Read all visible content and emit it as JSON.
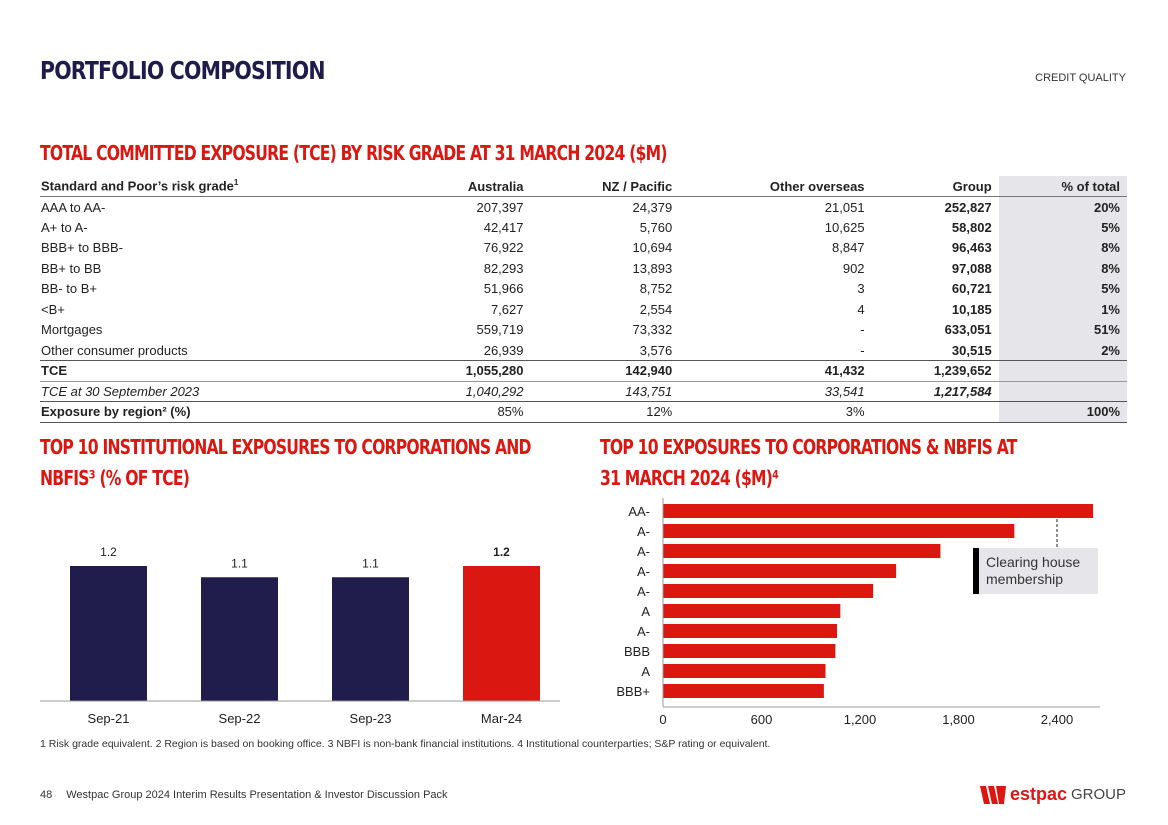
{
  "header": {
    "title": "PORTFOLIO COMPOSITION",
    "section": "CREDIT QUALITY"
  },
  "table_title": "TOTAL COMMITTED EXPOSURE (TCE) BY RISK GRADE AT 31 MARCH 2024 ($M)",
  "table": {
    "headers": [
      "Standard and Poor’s risk grade",
      "Australia",
      "NZ / Pacific",
      "Other overseas",
      "Group",
      "% of total"
    ],
    "header_sup": "1",
    "rows": [
      [
        "AAA to AA-",
        "207,397",
        "24,379",
        "21,051",
        "252,827",
        "20%"
      ],
      [
        "A+ to A-",
        "42,417",
        "5,760",
        "10,625",
        "58,802",
        "5%"
      ],
      [
        "BBB+ to BBB-",
        "76,922",
        "10,694",
        "8,847",
        "96,463",
        "8%"
      ],
      [
        "BB+ to BB",
        "82,293",
        "13,893",
        "902",
        "97,088",
        "8%"
      ],
      [
        "BB- to B+",
        "51,966",
        "8,752",
        "3",
        "60,721",
        "5%"
      ],
      [
        "<B+",
        "7,627",
        "2,554",
        "4",
        "10,185",
        "1%"
      ],
      [
        "Mortgages",
        "559,719",
        "73,332",
        "-",
        "633,051",
        "51%"
      ],
      [
        "Other consumer products",
        "26,939",
        "3,576",
        "-",
        "30,515",
        "2%"
      ]
    ],
    "tce": [
      "TCE",
      "1,055,280",
      "142,940",
      "41,432",
      "1,239,652",
      ""
    ],
    "tce_prior": [
      "TCE at 30 September 2023",
      "1,040,292",
      "143,751",
      "33,541",
      "1,217,584",
      ""
    ],
    "region": [
      "Exposure by region² (%)",
      "85%",
      "12%",
      "3%",
      "",
      "100%"
    ]
  },
  "chart_data": [
    {
      "type": "bar",
      "title": "TOP 10 INSTITUTIONAL EXPOSURES TO CORPORATIONS AND NBFIS³ (% OF TCE)",
      "categories": [
        "Sep-21",
        "Sep-22",
        "Sep-23",
        "Mar-24"
      ],
      "values": [
        1.2,
        1.1,
        1.1,
        1.2
      ],
      "colors": [
        "#201c4c",
        "#201c4c",
        "#201c4c",
        "#da1710"
      ],
      "ylim": [
        0,
        1.3
      ],
      "grid": false
    },
    {
      "type": "bar",
      "orientation": "horizontal",
      "title": "TOP 10 EXPOSURES TO CORPORATIONS & NBFIS AT 31 MARCH 2024 ($M)⁴",
      "categories": [
        "AA-",
        "A-",
        "A-",
        "A-",
        "A-",
        "A",
        "A-",
        "BBB",
        "A",
        "BBB+"
      ],
      "values": [
        2620,
        2140,
        1690,
        1420,
        1280,
        1080,
        1060,
        1050,
        990,
        980
      ],
      "xticks": [
        "0",
        "600",
        "1,200",
        "1,800",
        "2,400"
      ],
      "xtick_values": [
        0,
        600,
        1200,
        1800,
        2400
      ],
      "xlim": [
        0,
        2680
      ],
      "color": "#da1710",
      "annotation": "Clearing house membership",
      "grid": false
    }
  ],
  "footnote": "1 Risk grade equivalent. 2 Region is based on booking office. 3 NBFI is non-bank financial institutions. 4 Institutional counterparties; S&P rating or equivalent.",
  "footer": {
    "page": "48",
    "text": "Westpac Group 2024 Interim Results Presentation & Investor Discussion Pack",
    "logo": "Westpac GROUP"
  },
  "colors": {
    "navy": "#201c4c",
    "red": "#da1710"
  }
}
